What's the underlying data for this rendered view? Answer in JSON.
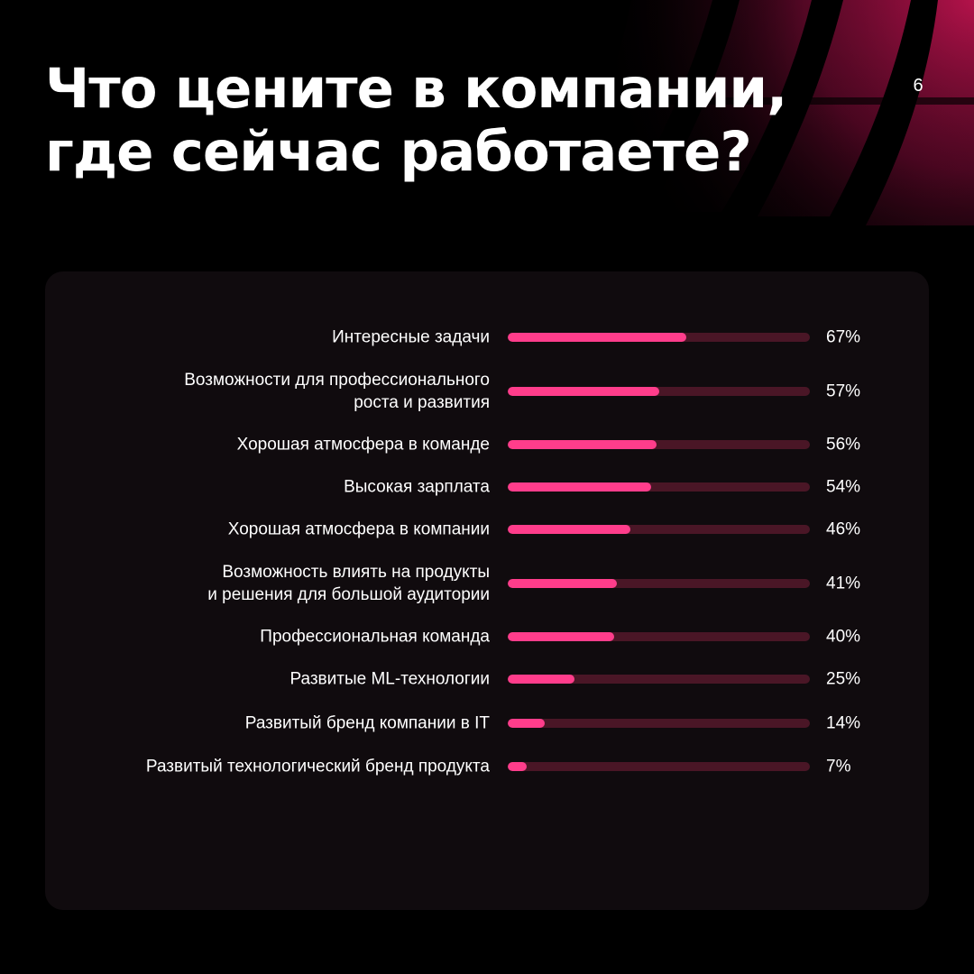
{
  "page": {
    "title_lines": [
      "Что цените в компании,",
      "где сейчас работаете?"
    ],
    "page_number": "6"
  },
  "colors": {
    "background": "#000000",
    "panel": "#100b0e",
    "bar_fill": "#ff3d8b",
    "bar_track": "#4a1626",
    "text": "#ffffff",
    "decor_accent": "#b3124a"
  },
  "chart_data": {
    "type": "bar",
    "orientation": "horizontal",
    "xlim": [
      0,
      100
    ],
    "bars": [
      {
        "label": [
          "Интересные задачи"
        ],
        "value": 67,
        "value_label": "67%"
      },
      {
        "label": [
          "Возможности для профессионального",
          "роста и развития"
        ],
        "value": 57,
        "value_label": "57%"
      },
      {
        "label": [
          "Хорошая атмосфера в команде"
        ],
        "value": 56,
        "value_label": "56%"
      },
      {
        "label": [
          "Высокая зарплата"
        ],
        "value": 54,
        "value_label": "54%"
      },
      {
        "label": [
          "Хорошая атмосфера в компании"
        ],
        "value": 46,
        "value_label": "46%"
      },
      {
        "label": [
          "Возможность влиять на продукты",
          "и решения для большой аудитории"
        ],
        "value": 41,
        "value_label": "41%"
      },
      {
        "label": [
          "Профессиональная команда"
        ],
        "value": 40,
        "value_label": "40%"
      },
      {
        "label": [
          "Развитые ML-технологии"
        ],
        "value": 25,
        "value_label": "25%"
      },
      {
        "label": [
          "Развитый бренд компании в IT"
        ],
        "value": 14,
        "value_label": "14%"
      },
      {
        "label": [
          "Развитый технологический бренд продукта"
        ],
        "value": 7,
        "value_label": "7%"
      }
    ]
  }
}
